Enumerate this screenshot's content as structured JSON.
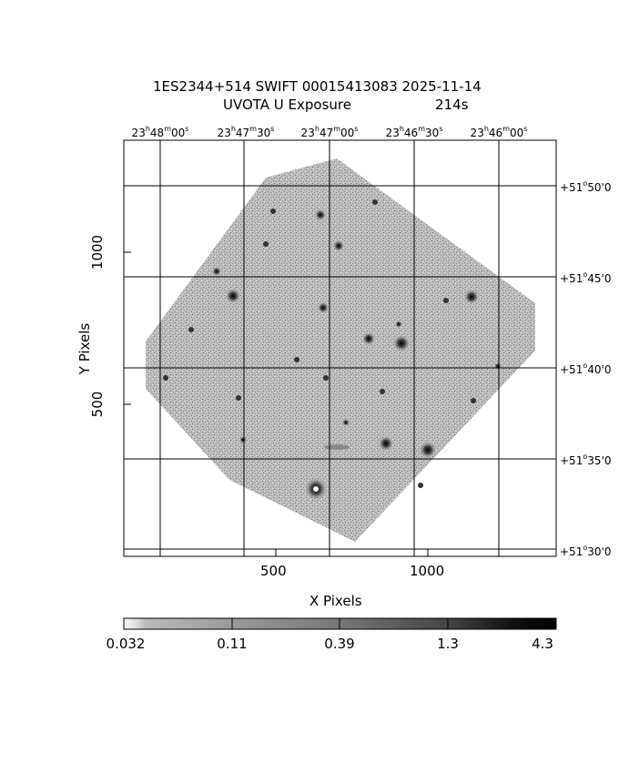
{
  "title": {
    "line1": "1ES2344+514 SWIFT 00015413083 2025-11-14",
    "line2_label": "UVOTA U Exposure",
    "line2_exposure": "214s"
  },
  "ra_axis": {
    "ticks": [
      {
        "h": "23",
        "m": "48",
        "s": "00"
      },
      {
        "h": "23",
        "m": "47",
        "s": "30"
      },
      {
        "h": "23",
        "m": "47",
        "s": "00"
      },
      {
        "h": "23",
        "m": "46",
        "s": "30"
      },
      {
        "h": "23",
        "m": "46",
        "s": "00"
      }
    ]
  },
  "dec_axis": {
    "ticks": [
      {
        "d": "+51",
        "m": "50",
        "s": "0"
      },
      {
        "d": "+51",
        "m": "45",
        "s": "0"
      },
      {
        "d": "+51",
        "m": "40",
        "s": "0"
      },
      {
        "d": "+51",
        "m": "35",
        "s": "0"
      },
      {
        "d": "+51",
        "m": "30",
        "s": "0"
      }
    ]
  },
  "x_axis": {
    "label": "X Pixels",
    "ticks": [
      "500",
      "1000"
    ]
  },
  "y_axis": {
    "label": "Y Pixels",
    "ticks": [
      "1000",
      "500"
    ]
  },
  "colorbar": {
    "ticks": [
      "0.032",
      "0.11",
      "0.39",
      "1.3",
      "4.3"
    ],
    "min_color": "#ffffff",
    "max_color": "#000000"
  },
  "colors": {
    "background": "#ffffff",
    "sky": "#a6a6a6",
    "grid": "#000000"
  }
}
